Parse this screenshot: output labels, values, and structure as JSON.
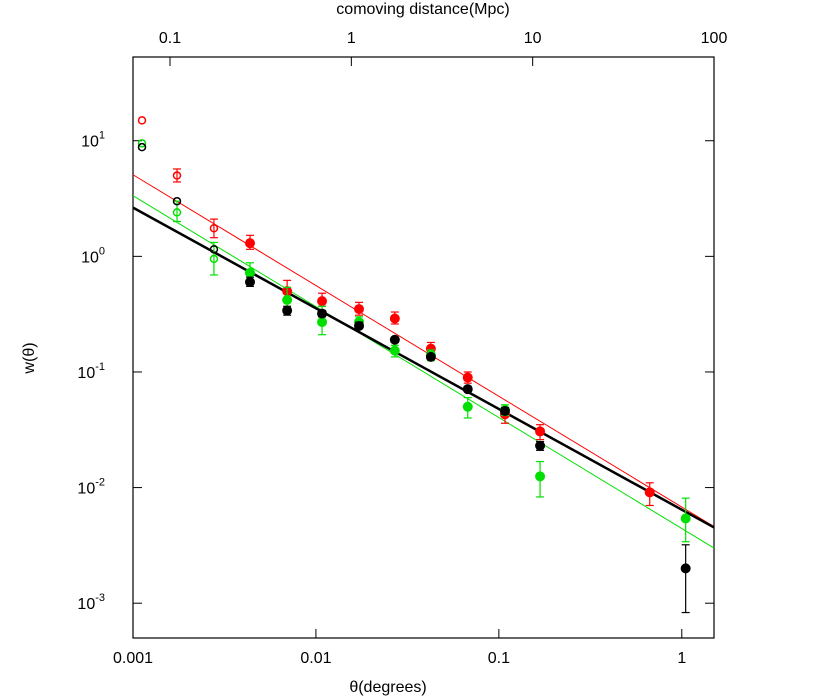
{
  "chart_data": {
    "type": "scatter",
    "xlabel": "θ(degrees)",
    "ylabel": "w(θ)",
    "x2label": "comoving distance(Mpc)",
    "xscale": "log",
    "yscale": "log",
    "xlim": [
      0.001,
      1.5
    ],
    "xticks": [
      0.001,
      0.01,
      0.1,
      1
    ],
    "x2lim": [
      0.0625,
      100
    ],
    "x2ticks": [
      0.1,
      1,
      10,
      100
    ],
    "ylim": [
      0.0005,
      53
    ],
    "yticks": [
      {
        "value": 0.001,
        "label": "10",
        "exponent": "-3"
      },
      {
        "value": 0.01,
        "label": "10",
        "exponent": "-2"
      },
      {
        "value": 0.1,
        "label": "10",
        "exponent": "-1"
      },
      {
        "value": 1,
        "label": "10",
        "exponent": "0"
      },
      {
        "value": 10,
        "label": "10",
        "exponent": "1"
      }
    ],
    "series": [
      {
        "color": "#ff0000",
        "marker": "open",
        "x": [
          0.00112,
          0.00174,
          0.00277
        ],
        "values": [
          15,
          5.0,
          1.75
        ],
        "lower": [
          null,
          4.4,
          1.45
        ],
        "upper": [
          null,
          5.7,
          2.1
        ]
      },
      {
        "color": "#00e000",
        "marker": "open",
        "x": [
          0.00112,
          0.00174,
          0.00277
        ],
        "values": [
          9.5,
          2.4,
          0.95
        ],
        "lower": [
          null,
          2.0,
          0.69
        ],
        "upper": [
          null,
          3.0,
          1.32
        ]
      },
      {
        "color": "#000000",
        "marker": "open",
        "x": [
          0.00112,
          0.00174,
          0.00277
        ],
        "values": [
          8.8,
          3.0,
          1.15
        ],
        "lower": [
          null,
          null,
          null
        ],
        "upper": [
          null,
          null,
          null
        ]
      },
      {
        "color": "#ff0000",
        "marker": "filled",
        "x": [
          0.00436,
          0.00696,
          0.0108,
          0.0172,
          0.027,
          0.0425,
          0.0676,
          0.108,
          0.168,
          0.668
        ],
        "values": [
          1.3,
          0.5,
          0.41,
          0.35,
          0.29,
          0.159,
          0.0895,
          0.043,
          0.0306,
          0.0091
        ],
        "lower": [
          1.15,
          0.42,
          0.37,
          0.31,
          0.26,
          0.14,
          0.08,
          0.036,
          0.026,
          0.007
        ],
        "upper": [
          1.52,
          0.62,
          0.48,
          0.4,
          0.33,
          0.18,
          0.1,
          0.049,
          0.035,
          0.011
        ]
      },
      {
        "color": "#00e000",
        "marker": "filled",
        "x": [
          0.00436,
          0.00696,
          0.0108,
          0.0172,
          0.027,
          0.0425,
          0.0676,
          0.108,
          0.168,
          1.05
        ],
        "values": [
          0.72,
          0.42,
          0.27,
          0.27,
          0.153,
          0.14,
          0.05,
          0.047,
          0.0125,
          0.0054
        ],
        "lower": [
          0.63,
          0.35,
          0.21,
          0.245,
          0.135,
          0.125,
          0.04,
          0.042,
          0.0083,
          0.0034
        ],
        "upper": [
          0.88,
          0.54,
          0.37,
          0.3,
          0.17,
          0.155,
          0.06,
          0.052,
          0.0168,
          0.0081
        ]
      },
      {
        "color": "#000000",
        "marker": "filled",
        "x": [
          0.00436,
          0.00696,
          0.0108,
          0.0172,
          0.027,
          0.0425,
          0.0676,
          0.108,
          0.168,
          1.05
        ],
        "values": [
          0.6,
          0.34,
          0.32,
          0.25,
          0.19,
          0.135,
          0.071,
          0.046,
          0.023,
          0.002
        ],
        "lower": [
          0.55,
          0.31,
          0.3,
          0.24,
          0.18,
          0.128,
          0.068,
          0.043,
          0.021,
          0.00083
        ],
        "upper": [
          0.66,
          0.37,
          0.34,
          0.27,
          0.2,
          0.142,
          0.075,
          0.049,
          0.025,
          0.0032
        ]
      }
    ],
    "fits": [
      {
        "color": "#ff0000",
        "width": 1,
        "x": [
          0.001,
          1.5
        ],
        "values": [
          5.08,
          0.0046
        ]
      },
      {
        "color": "#00e000",
        "width": 1,
        "x": [
          0.001,
          1.5
        ],
        "values": [
          3.35,
          0.003
        ]
      },
      {
        "color": "#000000",
        "width": 2.5,
        "x": [
          0.001,
          1.5
        ],
        "values": [
          2.64,
          0.00452
        ]
      }
    ]
  }
}
